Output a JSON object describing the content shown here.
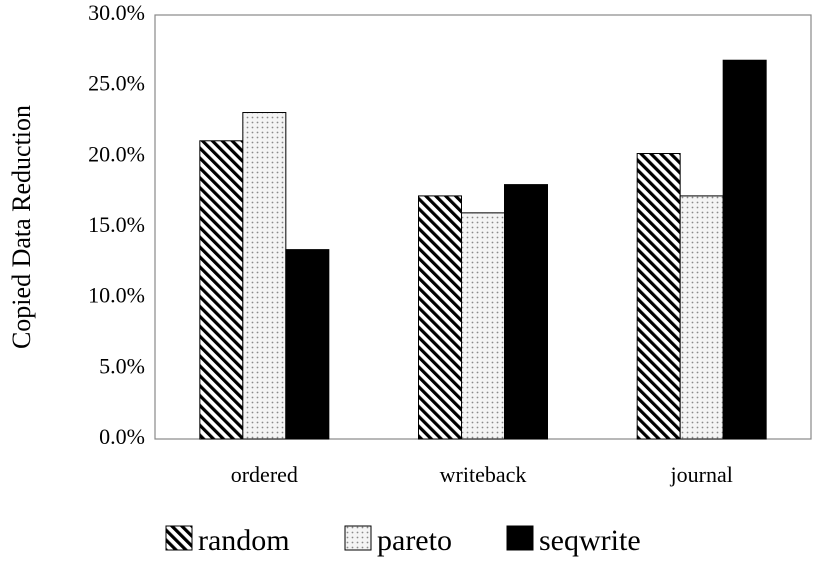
{
  "chart_data": {
    "type": "bar",
    "categories": [
      "ordered",
      "writeback",
      "journal"
    ],
    "series": [
      {
        "name": "random",
        "values": [
          21.1,
          17.2,
          20.2
        ],
        "pattern": "diagonal-hatch"
      },
      {
        "name": "pareto",
        "values": [
          23.1,
          16.0,
          17.2
        ],
        "pattern": "dotted"
      },
      {
        "name": "seqwrite",
        "values": [
          13.4,
          18.0,
          26.8
        ],
        "pattern": "solid-black"
      }
    ],
    "title": "",
    "xlabel": "",
    "ylabel": "Copied Data Reduction",
    "ylim": [
      0,
      30
    ],
    "yticks": [
      "0.0%",
      "5.0%",
      "10.0%",
      "15.0%",
      "20.0%",
      "25.0%",
      "30.0%"
    ],
    "grid": false,
    "legend": "bottom",
    "colors": {
      "bar_border": "#000000",
      "solid": "#000000",
      "background": "#ffffff"
    }
  }
}
